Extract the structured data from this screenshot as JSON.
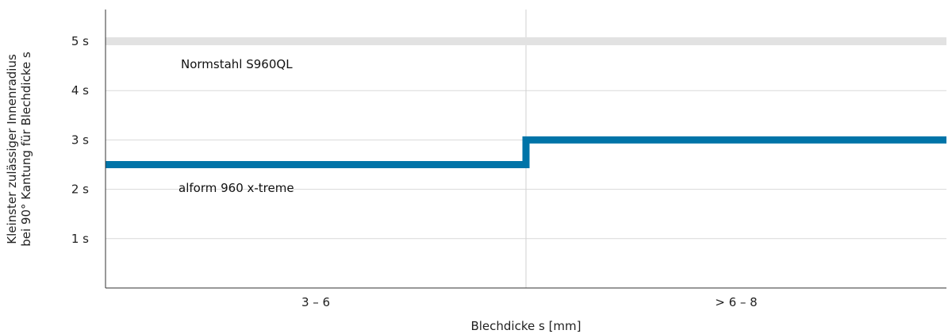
{
  "chart_data": {
    "type": "line",
    "xlabel": "Blechdicke s [mm]",
    "ylabel_lines": [
      "Kleinster zulässiger Innenradius",
      "bei 90° Kantung für Blechdicke s"
    ],
    "categories": [
      "3 – 6",
      "> 6 – 8"
    ],
    "yticks": [
      {
        "value": 1,
        "label": "1 s"
      },
      {
        "value": 2,
        "label": "2 s"
      },
      {
        "value": 3,
        "label": "3 s"
      },
      {
        "value": 4,
        "label": "4 s"
      },
      {
        "value": 5,
        "label": "5 s"
      }
    ],
    "ylim": [
      0,
      5.6
    ],
    "grid": true,
    "series": [
      {
        "name": "Normstahl S960QL",
        "values": [
          5,
          5
        ],
        "color": "#e2e2e2"
      },
      {
        "name": "alform 960 x-treme",
        "values": [
          2.5,
          3
        ],
        "color": "#0074a8"
      }
    ]
  }
}
